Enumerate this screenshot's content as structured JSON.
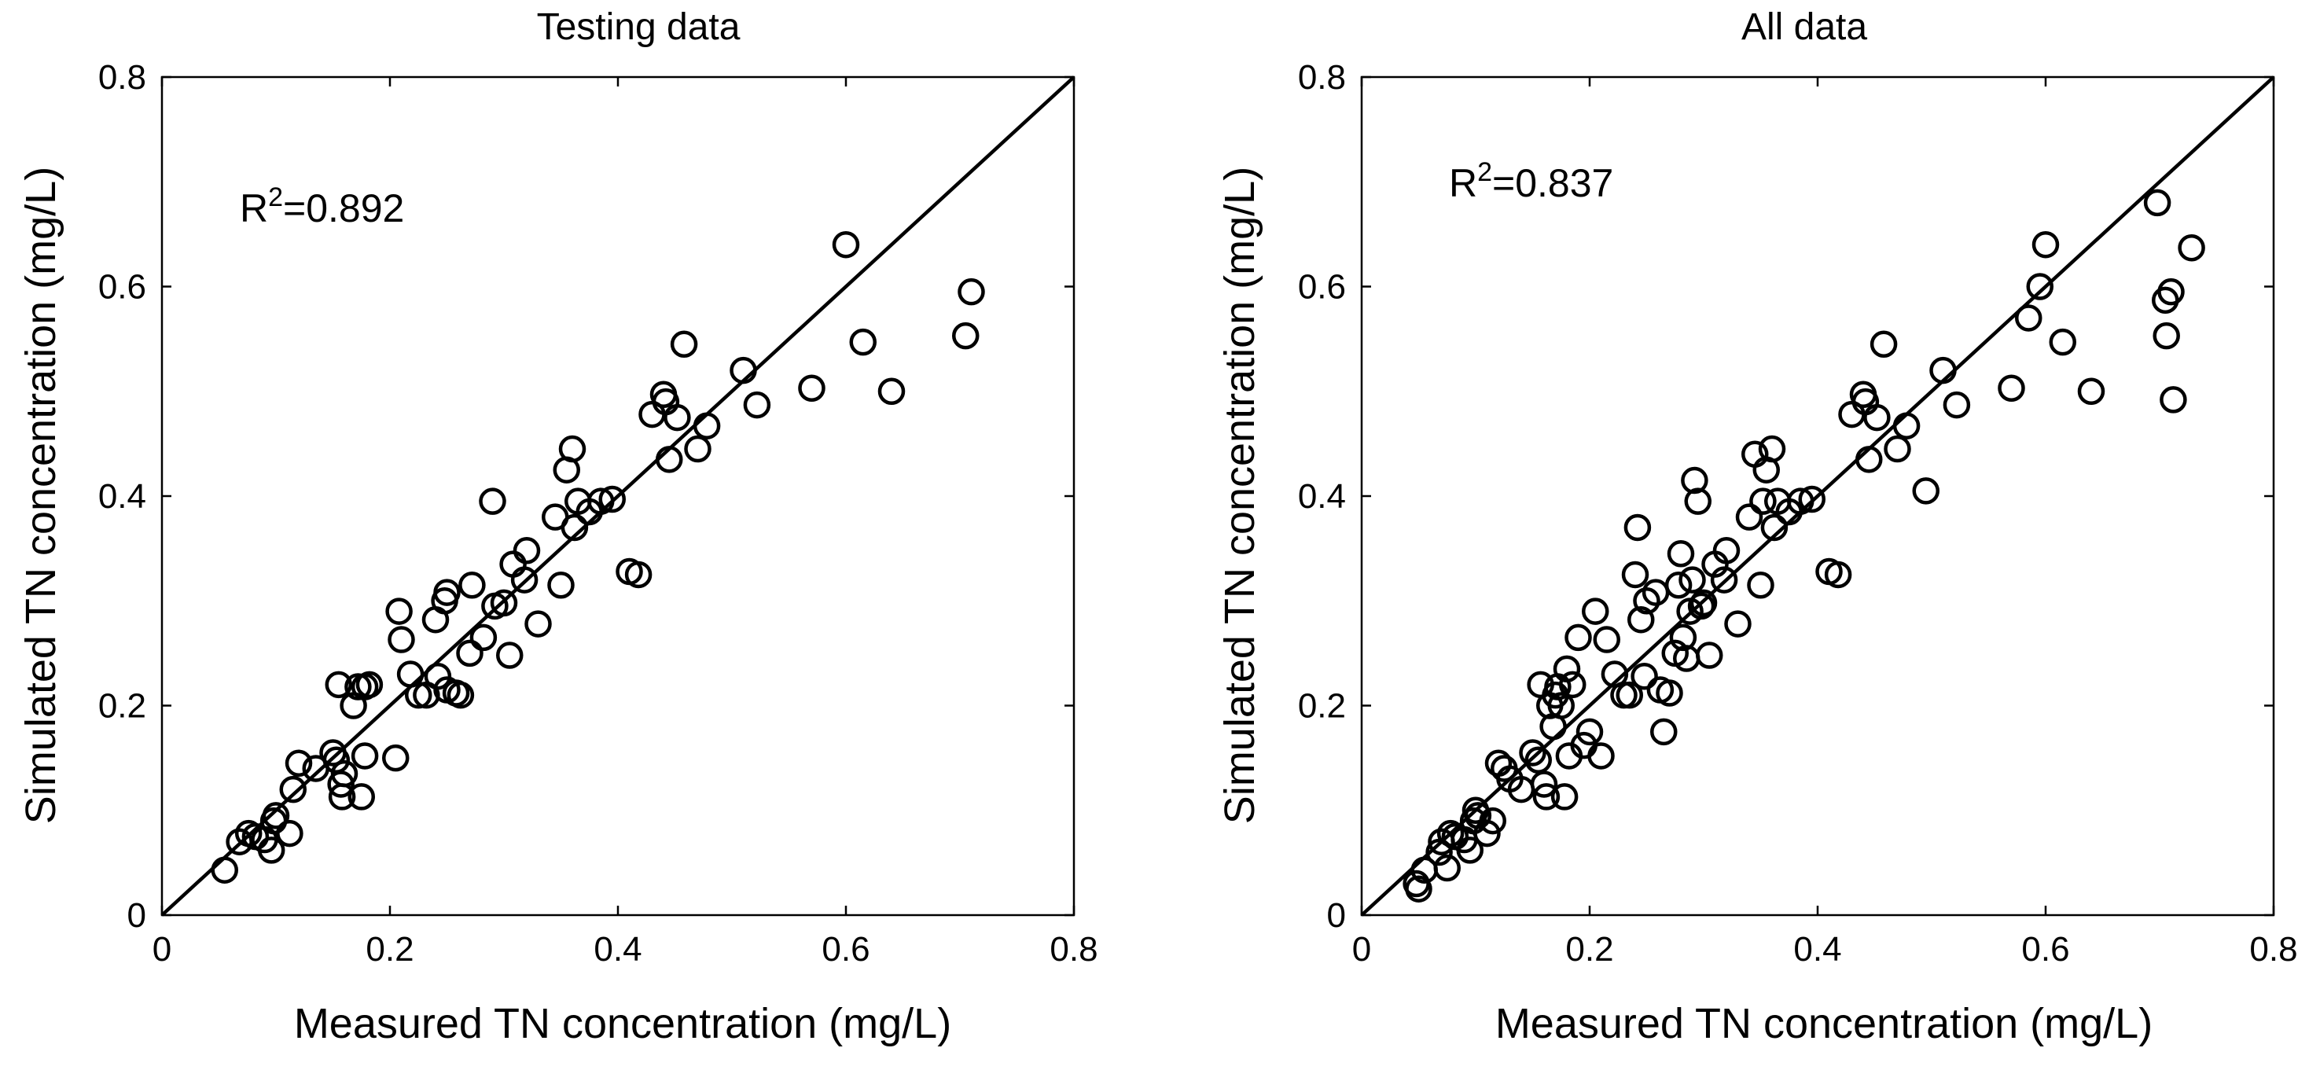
{
  "chart_data": [
    {
      "type": "scatter",
      "title": "Testing data",
      "xlabel": "Measured TN concentration (mg/L)",
      "ylabel": "Simulated TN concentration (mg/L)",
      "xlim": [
        0,
        0.8
      ],
      "ylim": [
        0,
        0.8
      ],
      "xticks": [
        "0",
        "0.2",
        "0.4",
        "0.6",
        "0.8"
      ],
      "yticks": [
        "0",
        "0.2",
        "0.4",
        "0.6",
        "0.8"
      ],
      "grid": false,
      "reference_line": "1:1",
      "annotation": {
        "base": "R",
        "sup": "2",
        "text": "=0.892"
      },
      "series": [
        {
          "name": "Testing",
          "marker": "open-circle",
          "x": [
            0.055,
            0.068,
            0.076,
            0.082,
            0.09,
            0.096,
            0.098,
            0.1,
            0.112,
            0.115,
            0.12,
            0.135,
            0.15,
            0.153,
            0.155,
            0.157,
            0.158,
            0.16,
            0.168,
            0.172,
            0.175,
            0.178,
            0.178,
            0.182,
            0.205,
            0.208,
            0.21,
            0.218,
            0.225,
            0.232,
            0.24,
            0.242,
            0.248,
            0.25,
            0.25,
            0.258,
            0.262,
            0.27,
            0.272,
            0.282,
            0.29,
            0.292,
            0.3,
            0.305,
            0.308,
            0.318,
            0.32,
            0.33,
            0.345,
            0.35,
            0.355,
            0.36,
            0.362,
            0.365,
            0.375,
            0.385,
            0.395,
            0.41,
            0.418,
            0.43,
            0.44,
            0.442,
            0.445,
            0.452,
            0.458,
            0.47,
            0.478,
            0.51,
            0.522,
            0.57,
            0.6,
            0.615,
            0.64,
            0.705,
            0.71
          ],
          "y": [
            0.043,
            0.07,
            0.078,
            0.075,
            0.072,
            0.062,
            0.09,
            0.095,
            0.078,
            0.12,
            0.145,
            0.14,
            0.155,
            0.148,
            0.22,
            0.125,
            0.113,
            0.135,
            0.2,
            0.218,
            0.113,
            0.152,
            0.218,
            0.22,
            0.15,
            0.29,
            0.263,
            0.23,
            0.21,
            0.21,
            0.282,
            0.228,
            0.3,
            0.308,
            0.215,
            0.212,
            0.21,
            0.25,
            0.315,
            0.265,
            0.395,
            0.295,
            0.298,
            0.248,
            0.335,
            0.32,
            0.348,
            0.278,
            0.38,
            0.315,
            0.425,
            0.445,
            0.37,
            0.395,
            0.385,
            0.395,
            0.397,
            0.328,
            0.325,
            0.478,
            0.497,
            0.49,
            0.435,
            0.475,
            0.545,
            0.445,
            0.467,
            0.52,
            0.487,
            0.503,
            0.64,
            0.547,
            0.5,
            0.553,
            0.595
          ]
        }
      ]
    },
    {
      "type": "scatter",
      "title": "All data",
      "xlabel": "Measured TN concentration (mg/L)",
      "ylabel": "Simulated TN concentration (mg/L)",
      "xlim": [
        0,
        0.8
      ],
      "ylim": [
        0,
        0.8
      ],
      "xticks": [
        "0",
        "0.2",
        "0.4",
        "0.6",
        "0.8"
      ],
      "yticks": [
        "0",
        "0.2",
        "0.4",
        "0.6",
        "0.8"
      ],
      "grid": false,
      "reference_line": "1:1",
      "annotation": {
        "base": "R",
        "sup": "2",
        "text": "=0.837"
      },
      "series": [
        {
          "name": "All",
          "marker": "open-circle",
          "x": [
            0.048,
            0.05,
            0.055,
            0.068,
            0.07,
            0.075,
            0.078,
            0.082,
            0.09,
            0.095,
            0.098,
            0.1,
            0.102,
            0.11,
            0.115,
            0.12,
            0.125,
            0.13,
            0.14,
            0.15,
            0.155,
            0.157,
            0.16,
            0.162,
            0.165,
            0.168,
            0.17,
            0.172,
            0.175,
            0.178,
            0.18,
            0.182,
            0.185,
            0.19,
            0.195,
            0.2,
            0.205,
            0.21,
            0.215,
            0.222,
            0.23,
            0.235,
            0.24,
            0.242,
            0.245,
            0.248,
            0.25,
            0.258,
            0.262,
            0.265,
            0.27,
            0.275,
            0.278,
            0.28,
            0.282,
            0.285,
            0.288,
            0.29,
            0.292,
            0.295,
            0.298,
            0.3,
            0.305,
            0.31,
            0.318,
            0.32,
            0.33,
            0.34,
            0.345,
            0.35,
            0.352,
            0.355,
            0.36,
            0.362,
            0.365,
            0.375,
            0.385,
            0.395,
            0.41,
            0.418,
            0.43,
            0.44,
            0.442,
            0.445,
            0.452,
            0.458,
            0.47,
            0.478,
            0.495,
            0.51,
            0.522,
            0.57,
            0.585,
            0.595,
            0.6,
            0.615,
            0.64,
            0.698,
            0.705,
            0.706,
            0.71,
            0.712,
            0.728
          ],
          "y": [
            0.03,
            0.025,
            0.043,
            0.06,
            0.07,
            0.045,
            0.078,
            0.075,
            0.072,
            0.062,
            0.09,
            0.1,
            0.095,
            0.078,
            0.09,
            0.145,
            0.14,
            0.13,
            0.12,
            0.155,
            0.148,
            0.22,
            0.125,
            0.113,
            0.2,
            0.18,
            0.21,
            0.218,
            0.2,
            0.113,
            0.235,
            0.152,
            0.22,
            0.265,
            0.162,
            0.175,
            0.29,
            0.152,
            0.263,
            0.23,
            0.21,
            0.21,
            0.325,
            0.37,
            0.282,
            0.228,
            0.3,
            0.308,
            0.215,
            0.175,
            0.212,
            0.25,
            0.315,
            0.345,
            0.265,
            0.245,
            0.29,
            0.32,
            0.415,
            0.395,
            0.295,
            0.298,
            0.248,
            0.335,
            0.32,
            0.348,
            0.278,
            0.38,
            0.44,
            0.315,
            0.395,
            0.425,
            0.445,
            0.37,
            0.395,
            0.385,
            0.395,
            0.397,
            0.328,
            0.325,
            0.478,
            0.497,
            0.49,
            0.435,
            0.475,
            0.545,
            0.445,
            0.467,
            0.405,
            0.52,
            0.487,
            0.503,
            0.57,
            0.6,
            0.64,
            0.547,
            0.5,
            0.68,
            0.587,
            0.553,
            0.595,
            0.492,
            0.637
          ]
        }
      ]
    }
  ]
}
